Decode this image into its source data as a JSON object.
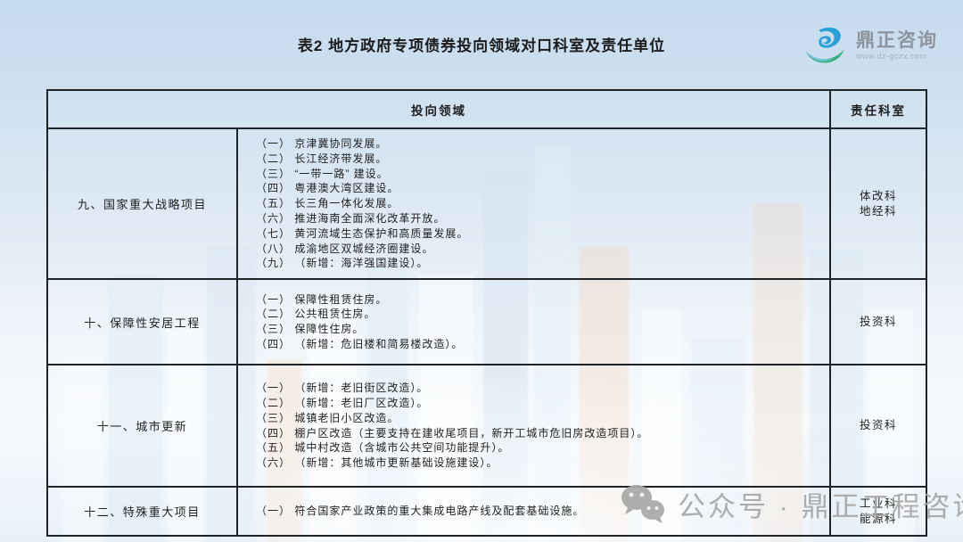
{
  "page": {
    "title": "表2 地方政府专项债券投向领域对口科室及责任单位"
  },
  "logo": {
    "name": "鼎正咨询",
    "url": "www.dz-gczx.com",
    "icon": "dingzheng-swoosh-icon"
  },
  "table": {
    "headers": {
      "investment_area": "投向领域",
      "responsible_dept": "责任科室"
    },
    "rows": [
      {
        "category": "九、国家重大战略项目",
        "items": [
          "（一） 京津冀协同发展。",
          "（二） 长江经济带发展。",
          "（三） “一带一路” 建设。",
          "（四） 粤港澳大湾区建设。",
          "（五） 长三角一体化发展。",
          "（六） 推进海南全面深化改革开放。",
          "（七） 黄河流域生态保护和高质量发展。",
          "（八） 成渝地区双城经济圈建设。",
          "（九） （新增：海洋强国建设）。"
        ],
        "dept_lines": [
          "体改科",
          "地经科"
        ]
      },
      {
        "category": "十、保障性安居工程",
        "items": [
          "（一） 保障性租赁住房。",
          "（二） 公共租赁住房。",
          "（三） 保障性住房。",
          "（四） （新增：危旧楼和简易楼改造）。"
        ],
        "dept_lines": [
          "投资科"
        ]
      },
      {
        "category": "十一、城市更新",
        "items": [
          "（一） （新增：老旧街区改造）。",
          "（二） （新增：老旧厂区改造）。",
          "（三） 城镇老旧小区改造。",
          "（四） 棚户区改造（主要支持在建收尾项目，新开工城市危旧房改造项目）。",
          "（五） 城中村改造（含城市公共空间功能提升）。",
          "（六） （新增：其他城市更新基础设施建设）。"
        ],
        "dept_lines": [
          "投资科"
        ]
      },
      {
        "category": "十二、特殊重大项目",
        "items": [
          "（一） 符合国家产业政策的重大集成电路产线及配套基础设施。"
        ],
        "dept_lines": [
          "工业科",
          "能源科"
        ]
      }
    ]
  },
  "watermark": {
    "icon": "wechat-icon",
    "text": "公众号 · 鼎正工程咨询"
  },
  "colors": {
    "brand_blue": "#2aa0d8",
    "brand_green": "#35b07c",
    "table_border": "#1f2326",
    "watermark_gray": "#a7a7a7",
    "background_top": "#c6dbee",
    "background_bottom": "#e9f1f8"
  }
}
